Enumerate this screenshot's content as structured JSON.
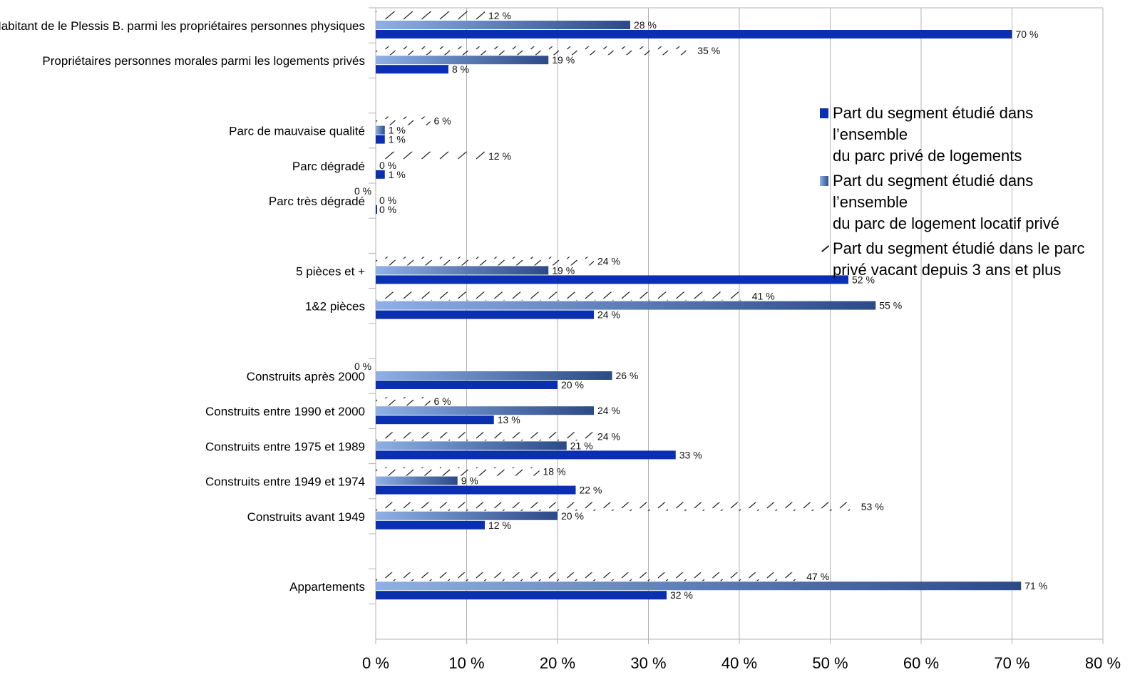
{
  "chart_data": {
    "type": "bar",
    "orientation": "horizontal",
    "categories": [
      "Habitant de le Plessis B. parmi les propriétaires personnes physiques",
      "Propriétaires personnes morales parmi les logements privés",
      "",
      "Parc de mauvaise qualité",
      "Parc dégradé",
      "Parc très dégradé",
      "",
      "5 pièces et +",
      "1&2 pièces",
      "",
      "Construits après 2000",
      "Construits entre 1990 et 2000",
      "Construits entre 1975 et 1989",
      "Construits entre 1949 et 1974",
      "Construits avant 1949",
      "",
      "Appartements"
    ],
    "series": [
      {
        "name": "Part du segment étudié dans le parc privé vacant depuis 3 ans et plus",
        "color": "#222222",
        "values": [
          12,
          35,
          null,
          6,
          12,
          0,
          null,
          24,
          41,
          null,
          0,
          6,
          24,
          18,
          53,
          null,
          47
        ],
        "labels": [
          "12 %",
          "35 %",
          "",
          "6 %",
          "12 %",
          "0 %",
          "",
          "24 %",
          "41 %",
          "",
          "0 %",
          "6 %",
          "24 %",
          "18 %",
          "53 %",
          "",
          "47 %"
        ]
      },
      {
        "name": "Part du segment étudié dans l’ensemble du parc de logement locatif privé",
        "color": "#4a6fb5",
        "values": [
          28,
          19,
          null,
          1,
          0,
          0,
          null,
          19,
          55,
          null,
          26,
          24,
          21,
          9,
          20,
          null,
          71
        ],
        "labels": [
          "28 %",
          "19 %",
          "",
          "1 %",
          "0 %",
          "0 %",
          "",
          "19 %",
          "55 %",
          "",
          "26 %",
          "24 %",
          "21 %",
          "9 %",
          "20 %",
          "",
          "71 %"
        ]
      },
      {
        "name": "Part du segment étudié dans l’ensemble du parc privé de logements",
        "color": "#0a2fb0",
        "values": [
          70,
          8,
          null,
          1,
          1,
          0,
          null,
          52,
          24,
          null,
          20,
          13,
          33,
          22,
          12,
          null,
          32
        ],
        "labels": [
          "70 %",
          "8 %",
          "",
          "1 %",
          "1 %",
          "0 %",
          "",
          "52 %",
          "24 %",
          "",
          "20 %",
          "13 %",
          "33 %",
          "22 %",
          "12 %",
          "",
          "32 %"
        ]
      }
    ],
    "xlim": [
      0,
      80
    ],
    "xticks": [
      0,
      10,
      20,
      30,
      40,
      50,
      60,
      70,
      80
    ],
    "xtick_labels": [
      "0 %",
      "10 %",
      "20 %",
      "30 %",
      "40 %",
      "50 %",
      "60 %",
      "70 %",
      "80 %"
    ],
    "grid": "vertical",
    "legend_position": "right",
    "legend": [
      {
        "swatch": "solid",
        "text_line1": "Part du segment étudié dans l’ensemble",
        "text_line2": "du parc privé de logements"
      },
      {
        "swatch": "gradient",
        "text_line1": "Part du segment étudié dans l’ensemble",
        "text_line2": "du parc de logement locatif privé"
      },
      {
        "swatch": "hatch",
        "text_line1": "Part du segment étudié dans le parc",
        "text_line2": "privé vacant depuis 3 ans et plus"
      }
    ]
  }
}
